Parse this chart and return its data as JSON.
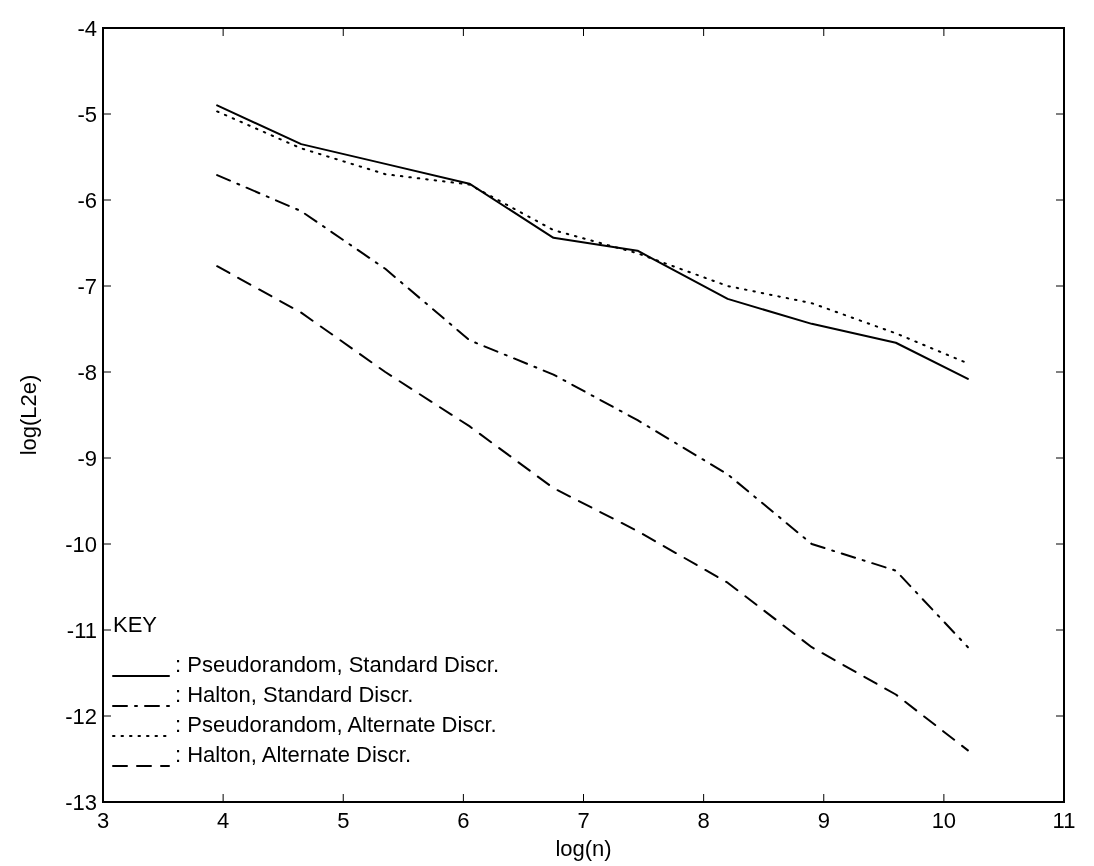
{
  "chart_data": {
    "type": "line",
    "xlabel": "log(n)",
    "ylabel": "log(L2e)",
    "legend_title": "KEY",
    "legend": "bottom left",
    "grid": false,
    "x": [
      3.95,
      4.65,
      5.35,
      6.05,
      6.75,
      7.45,
      8.2,
      8.9,
      9.6,
      10.2
    ],
    "xlim": [
      3,
      11
    ],
    "xticks": [
      3,
      4,
      5,
      6,
      7,
      8,
      9,
      10,
      11
    ],
    "ylim": [
      -13,
      -4
    ],
    "yticks": [
      -13,
      -12,
      -11,
      -10,
      -9,
      -8,
      -7,
      -6,
      -5,
      -4
    ],
    "series": [
      {
        "name": ": Pseudorandom, Standard Discr.",
        "color": "#000000",
        "line_style": "solid",
        "values": [
          -4.9,
          -5.35,
          -5.58,
          -5.81,
          -6.44,
          -6.59,
          -7.15,
          -7.44,
          -7.66,
          -8.08
        ]
      },
      {
        "name": ": Halton, Standard Discr.",
        "color": "#000000",
        "line_style": "dashdot",
        "values": [
          -5.71,
          -6.13,
          -6.8,
          -7.63,
          -8.03,
          -8.56,
          -9.19,
          -10.0,
          -10.31,
          -11.2
        ]
      },
      {
        "name": ": Pseudorandom, Alternate Discr.",
        "color": "#000000",
        "line_style": "dotted",
        "values": [
          -4.97,
          -5.4,
          -5.7,
          -5.82,
          -6.35,
          -6.62,
          -7.0,
          -7.2,
          -7.55,
          -7.9
        ]
      },
      {
        "name": ": Halton, Alternate Discr.",
        "color": "#000000",
        "line_style": "dashed",
        "values": [
          -6.77,
          -7.31,
          -8.0,
          -8.63,
          -9.35,
          -9.85,
          -10.45,
          -11.2,
          -11.75,
          -12.4
        ]
      }
    ]
  }
}
